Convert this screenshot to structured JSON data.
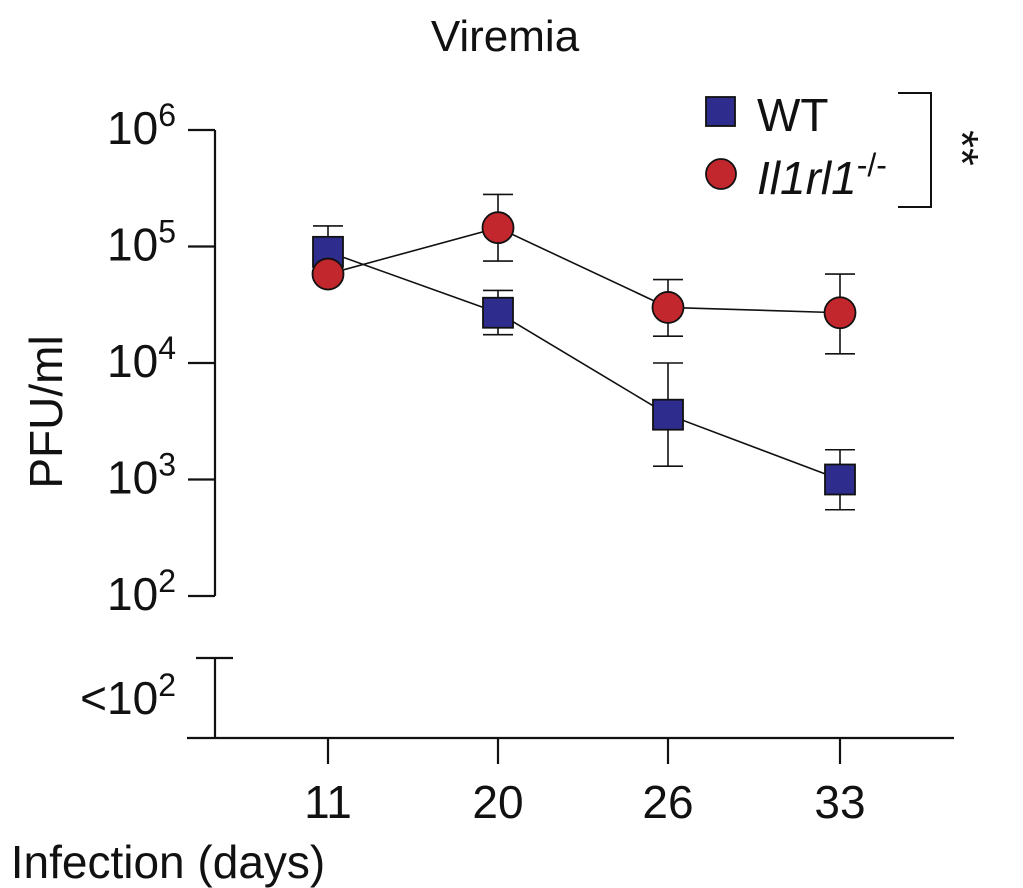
{
  "chart_data": {
    "type": "line",
    "title": "Viremia",
    "xlabel": "Infection (days)",
    "ylabel": "PFU/ml",
    "yscale": "log",
    "ylim": [
      100,
      1000000
    ],
    "categories": [
      "11",
      "20",
      "26",
      "33"
    ],
    "y_ticks": [
      {
        "base": "10",
        "exp": "6"
      },
      {
        "base": "10",
        "exp": "5"
      },
      {
        "base": "10",
        "exp": "4"
      },
      {
        "base": "10",
        "exp": "3"
      },
      {
        "base": "10",
        "exp": "2"
      }
    ],
    "below_detection": {
      "prefix": "<",
      "base": "10",
      "exp": "2"
    },
    "series": [
      {
        "name": "WT",
        "marker": "square",
        "color": "#2E2D8E",
        "values": [
          90000,
          27000,
          3600,
          1000
        ],
        "err_low": [
          65000,
          17500,
          1300,
          550
        ],
        "err_high": [
          150000,
          42000,
          10000,
          1800
        ]
      },
      {
        "name": "Il1rl1",
        "name_sup": "-/-",
        "marker": "circle",
        "color": "#C1272D",
        "values": [
          58000,
          145000,
          30000,
          27000
        ],
        "err_low": [
          58000,
          75000,
          17000,
          12000
        ],
        "err_high": [
          58000,
          280000,
          52000,
          58000
        ]
      }
    ],
    "significance": "**",
    "legend_position": "top-right"
  }
}
